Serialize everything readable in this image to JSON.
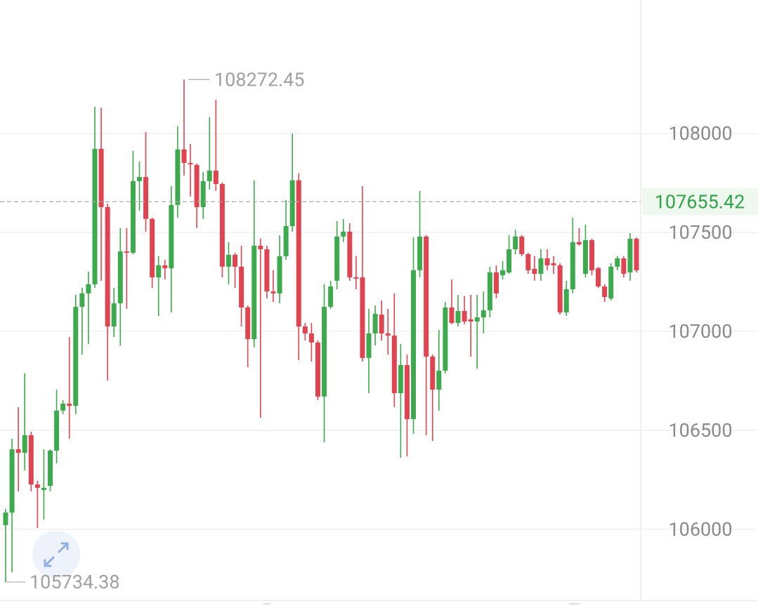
{
  "chart_data": {
    "type": "candlestick",
    "up_color": "#3daa4e",
    "down_color": "#df4450",
    "open": [
      106022,
      106085,
      106405,
      106387,
      106476,
      106227,
      106199,
      106220,
      106398,
      106600,
      106635,
      106624,
      107124,
      107192,
      107238,
      107922,
      107628,
      107025,
      107142,
      107404,
      107397,
      107759,
      107780,
      107568,
      107273,
      107334,
      107319,
      107639,
      107919,
      107851,
      107841,
      107628,
      107759,
      107812,
      107745,
      107327,
      107387,
      107327,
      107121,
      106961,
      107433,
      107415,
      107202,
      107192,
      107380,
      107532,
      107763,
      107025,
      106990,
      106944,
      106671,
      107124,
      107256,
      107479,
      107504,
      107273,
      107273,
      106866,
      106990,
      107085,
      106990,
      106979,
      106688,
      106830,
      106557,
      107309,
      107479,
      106873,
      106706,
      106802,
      107121,
      107043,
      107103,
      107061,
      107050,
      107071,
      107107,
      107298,
      107284,
      107298,
      107415,
      107479,
      107390,
      107316,
      107291,
      107369,
      107344,
      107334,
      107096,
      107213,
      107451,
      107291,
      107461,
      107319,
      107227,
      107167,
      107327,
      107369,
      107298,
      107468
    ],
    "close": [
      106085,
      106405,
      106387,
      106476,
      106227,
      106210,
      106210,
      106398,
      106600,
      106635,
      106624,
      107124,
      107192,
      107238,
      107922,
      107628,
      107025,
      107142,
      107404,
      107397,
      107759,
      107780,
      107568,
      107273,
      107334,
      107319,
      107639,
      107919,
      107851,
      107844,
      107628,
      107759,
      107812,
      107745,
      107327,
      107387,
      107327,
      107121,
      106961,
      107433,
      107415,
      107202,
      107192,
      107380,
      107532,
      107763,
      107025,
      106990,
      106944,
      106671,
      107124,
      107227,
      107479,
      107504,
      107273,
      107266,
      106866,
      106990,
      107089,
      106990,
      106979,
      106688,
      106830,
      106557,
      107309,
      107479,
      106873,
      106706,
      106802,
      107121,
      107043,
      107103,
      107050,
      107050,
      107071,
      107107,
      107298,
      107192,
      107309,
      107415,
      107479,
      107390,
      107309,
      107291,
      107369,
      107334,
      107334,
      107096,
      107213,
      107451,
      107440,
      107461,
      107309,
      107227,
      107174,
      107327,
      107369,
      107291,
      107468,
      107309
    ],
    "high": [
      106103,
      106458,
      106617,
      106788,
      106493,
      106245,
      106405,
      106405,
      106706,
      106653,
      106972,
      107185,
      107220,
      107302,
      108135,
      108130,
      107646,
      107220,
      107522,
      107522,
      107912,
      107858,
      108007,
      107575,
      107380,
      107362,
      107734,
      108036,
      108272.45,
      107947,
      107848,
      107805,
      108082,
      108170,
      107752,
      107451,
      107397,
      107433,
      107131,
      107763,
      107468,
      107433,
      107309,
      107486,
      107663,
      108000,
      107798,
      107043,
      107043,
      106954,
      107238,
      107256,
      107557,
      107568,
      107546,
      107380,
      107734,
      107114,
      107131,
      107156,
      107114,
      107192,
      106937,
      106883,
      107475,
      107710,
      107486,
      106883,
      107007,
      107149,
      107263,
      107185,
      107178,
      107185,
      107185,
      107202,
      107327,
      107334,
      107355,
      107486,
      107514,
      107486,
      107397,
      107380,
      107415,
      107415,
      107380,
      107344,
      107256,
      107575,
      107522,
      107539,
      107468,
      107327,
      107238,
      107344,
      107380,
      107380,
      107497,
      107475
    ],
    "low": [
      105734.38,
      105784,
      106192,
      106298,
      106192,
      106007,
      106050,
      106192,
      106334,
      106582,
      106458,
      106582,
      106883,
      106937,
      107220,
      107256,
      106752,
      106972,
      106929,
      107114,
      107390,
      107610,
      107504,
      107220,
      107078,
      107263,
      107096,
      107575,
      107788,
      107681,
      107522,
      107568,
      107717,
      107710,
      107273,
      107238,
      107220,
      107025,
      106819,
      106919,
      106564,
      107167,
      107149,
      107142,
      107362,
      107504,
      106855,
      106954,
      106848,
      106653,
      106440,
      107114,
      107213,
      107451,
      107256,
      107213,
      106848,
      106688,
      106929,
      106954,
      106883,
      106617,
      106362,
      106369,
      106483,
      107273,
      106476,
      106447,
      106600,
      106788,
      107036,
      107025,
      107036,
      106873,
      106812,
      106990,
      107071,
      107167,
      107263,
      107291,
      107390,
      107380,
      107291,
      107256,
      107256,
      107309,
      107291,
      107085,
      107078,
      107192,
      107433,
      107273,
      107284,
      107220,
      107149,
      107156,
      107309,
      107273,
      107256,
      107298
    ],
    "last_price": 107655.42,
    "ylim": [
      105642,
      108674
    ],
    "yticks": [
      106000,
      106500,
      107000,
      107500,
      108000
    ],
    "grid": true
  }
}
